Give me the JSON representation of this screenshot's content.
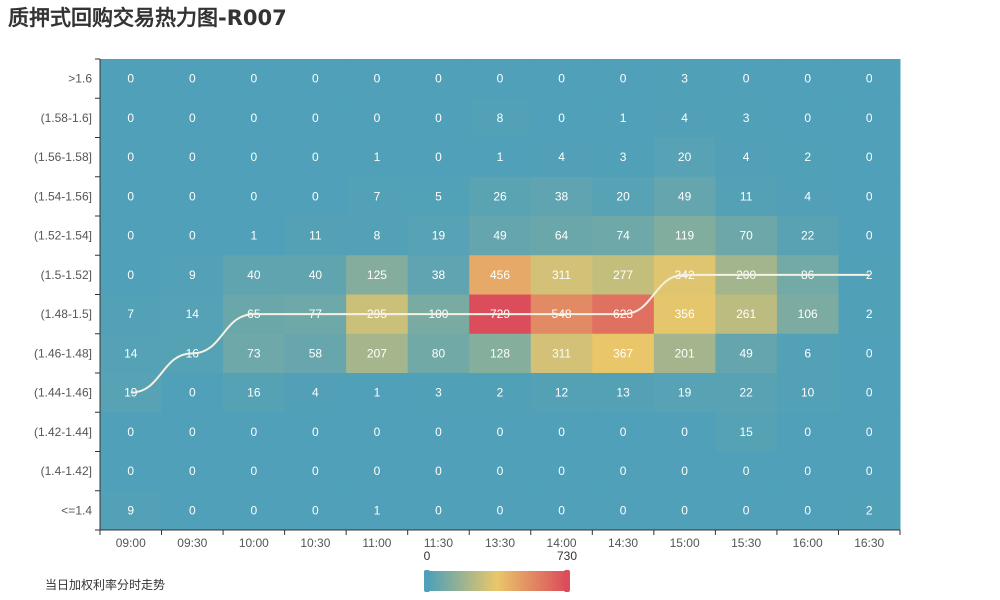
{
  "title": "质押式回购交易热力图-R007",
  "chart_data": {
    "type": "heatmap",
    "title": "质押式回购交易热力图-R007",
    "x_categories": [
      "09:00",
      "09:30",
      "10:00",
      "10:30",
      "11:00",
      "11:30",
      "13:30",
      "14:00",
      "14:30",
      "15:00",
      "15:30",
      "16:00",
      "16:30"
    ],
    "y_categories": [
      ">1.6",
      "(1.58-1.6]",
      "(1.56-1.58]",
      "(1.54-1.56]",
      "(1.52-1.54]",
      "(1.5-1.52]",
      "(1.48-1.5]",
      "(1.46-1.48]",
      "(1.44-1.46]",
      "(1.42-1.44]",
      "(1.4-1.42]",
      "<=1.4"
    ],
    "values": [
      [
        0,
        0,
        0,
        0,
        0,
        0,
        0,
        0,
        0,
        3,
        0,
        0,
        0
      ],
      [
        0,
        0,
        0,
        0,
        0,
        0,
        8,
        0,
        1,
        4,
        3,
        0,
        0
      ],
      [
        0,
        0,
        0,
        0,
        1,
        0,
        1,
        4,
        3,
        20,
        4,
        2,
        0
      ],
      [
        0,
        0,
        0,
        0,
        7,
        5,
        26,
        38,
        20,
        49,
        11,
        4,
        0
      ],
      [
        0,
        0,
        1,
        11,
        8,
        19,
        49,
        64,
        74,
        119,
        70,
        22,
        0
      ],
      [
        0,
        9,
        40,
        40,
        125,
        38,
        456,
        311,
        277,
        342,
        200,
        86,
        2
      ],
      [
        7,
        14,
        65,
        77,
        295,
        100,
        729,
        548,
        623,
        356,
        261,
        106,
        2
      ],
      [
        14,
        16,
        73,
        58,
        207,
        80,
        128,
        311,
        367,
        201,
        49,
        6,
        0
      ],
      [
        19,
        0,
        16,
        4,
        1,
        3,
        2,
        12,
        13,
        19,
        22,
        10,
        0
      ],
      [
        0,
        0,
        0,
        0,
        0,
        0,
        0,
        0,
        0,
        0,
        15,
        0,
        0
      ],
      [
        0,
        0,
        0,
        0,
        0,
        0,
        0,
        0,
        0,
        0,
        0,
        0,
        0
      ],
      [
        9,
        0,
        0,
        0,
        1,
        0,
        0,
        0,
        0,
        0,
        0,
        0,
        2
      ]
    ],
    "visual_map": {
      "min": 0,
      "max": 730,
      "min_label": "0",
      "max_label": "730",
      "colors": [
        "#4fa0b8",
        "#e9c76a",
        "#dc4d5c"
      ]
    },
    "line_series": {
      "name": "当日加权利率分时走势",
      "color": "#f5f1e3",
      "y_values": [
        "(1.44-1.46]",
        "(1.46-1.48]",
        "(1.48-1.5]",
        "(1.48-1.5]",
        "(1.48-1.5]",
        "(1.48-1.5]",
        "(1.48-1.5]",
        "(1.48-1.5]",
        "(1.48-1.5]",
        "(1.5-1.52]",
        "(1.5-1.52]",
        "(1.5-1.52]",
        "(1.5-1.52]"
      ]
    },
    "legend": {
      "position": "bottom-left"
    }
  }
}
